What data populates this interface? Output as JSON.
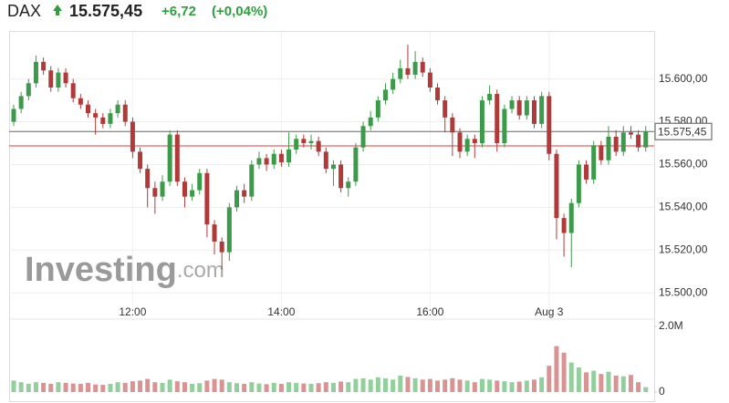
{
  "header": {
    "symbol": "DAX",
    "price": "15.575,45",
    "change": "+6,72",
    "change_pct": "(+0,04%)"
  },
  "watermark": {
    "brand": "Investing",
    "suffix": ".com"
  },
  "chart_data": {
    "type": "candlestick",
    "categories": [
      null,
      null,
      null,
      null,
      null,
      null,
      null,
      null,
      null,
      null,
      null,
      null,
      null,
      null,
      null,
      null,
      "12:00",
      null,
      null,
      null,
      null,
      null,
      null,
      null,
      null,
      null,
      null,
      null,
      null,
      null,
      null,
      null,
      null,
      null,
      null,
      null,
      "14:00",
      null,
      null,
      null,
      null,
      null,
      null,
      null,
      null,
      null,
      null,
      null,
      null,
      null,
      null,
      null,
      null,
      null,
      null,
      null,
      "16:00",
      null,
      null,
      null,
      null,
      null,
      null,
      null,
      null,
      null,
      null,
      null,
      null,
      null,
      null,
      null,
      "Aug 3",
      null,
      null,
      null,
      null,
      null,
      null,
      null,
      null,
      null,
      null,
      null,
      null,
      null
    ],
    "open": [
      15580,
      15586,
      15592,
      15598,
      15608,
      15604,
      15596,
      15603,
      15598,
      15591,
      15588,
      15584,
      15582,
      15579,
      15584,
      15588,
      15580,
      15566,
      15558,
      15549,
      15545,
      15552,
      15574,
      15552,
      15545,
      15548,
      15556,
      15532,
      15524,
      15519,
      15540,
      15548,
      15545,
      15560,
      15563,
      15560,
      15565,
      15561,
      15567,
      15572,
      15570,
      15571,
      15566,
      15558,
      15560,
      15549,
      15552,
      15568,
      15578,
      15582,
      15590,
      15595,
      15600,
      15605,
      15602,
      15608,
      15603,
      15596,
      15590,
      15582,
      15575,
      15566,
      15572,
      15570,
      15590,
      15593,
      15570,
      15586,
      15590,
      15583,
      15590,
      15579,
      15592,
      15565,
      15535,
      15528,
      15542,
      15560,
      15553,
      15569,
      15562,
      15573,
      15566,
      15575,
      15574,
      15568
    ],
    "high": [
      15588,
      15594,
      15600,
      15611,
      15610,
      15606,
      15605,
      15605,
      15600,
      15593,
      15590,
      15586,
      15584,
      15586,
      15590,
      15590,
      15582,
      15568,
      15560,
      15552,
      15555,
      15576,
      15576,
      15554,
      15551,
      15558,
      15558,
      15534,
      15526,
      15542,
      15550,
      15551,
      15562,
      15566,
      15565,
      15567,
      15567,
      15575,
      15574,
      15574,
      15574,
      15573,
      15568,
      15562,
      15562,
      15554,
      15570,
      15580,
      15585,
      15592,
      15598,
      15603,
      15609,
      15616,
      15613,
      15610,
      15605,
      15598,
      15592,
      15584,
      15577,
      15574,
      15574,
      15592,
      15597,
      15595,
      15588,
      15592,
      15592,
      15592,
      15592,
      15594,
      15594,
      15567,
      15537,
      15544,
      15562,
      15562,
      15571,
      15571,
      15578,
      15576,
      15578,
      15578,
      15576,
      15578
    ],
    "low": [
      15578,
      15584,
      15590,
      15596,
      15602,
      15594,
      15594,
      15596,
      15589,
      15586,
      15582,
      15574,
      15577,
      15577,
      15582,
      15578,
      15563,
      15556,
      15540,
      15537,
      15543,
      15550,
      15550,
      15540,
      15543,
      15546,
      15526,
      15518,
      15511,
      15515,
      15538,
      15542,
      15543,
      15558,
      15557,
      15558,
      15559,
      15559,
      15565,
      15568,
      15567,
      15564,
      15556,
      15550,
      15547,
      15545,
      15550,
      15566,
      15576,
      15580,
      15588,
      15593,
      15598,
      15600,
      15600,
      15601,
      15594,
      15588,
      15575,
      15564,
      15563,
      15564,
      15563,
      15568,
      15588,
      15566,
      15568,
      15584,
      15581,
      15581,
      15577,
      15577,
      15562,
      15525,
      15517,
      15512,
      15540,
      15551,
      15551,
      15560,
      15560,
      15564,
      15564,
      15572,
      15566,
      15566
    ],
    "close": [
      15586,
      15592,
      15598,
      15608,
      15604,
      15596,
      15603,
      15598,
      15591,
      15588,
      15584,
      15582,
      15579,
      15584,
      15588,
      15580,
      15566,
      15558,
      15549,
      15545,
      15552,
      15574,
      15552,
      15545,
      15548,
      15556,
      15532,
      15524,
      15519,
      15540,
      15548,
      15545,
      15560,
      15563,
      15560,
      15565,
      15561,
      15567,
      15572,
      15570,
      15571,
      15566,
      15558,
      15560,
      15549,
      15552,
      15568,
      15578,
      15582,
      15590,
      15595,
      15600,
      15605,
      15602,
      15608,
      15603,
      15596,
      15590,
      15582,
      15575,
      15566,
      15572,
      15570,
      15590,
      15593,
      15570,
      15586,
      15590,
      15583,
      15590,
      15579,
      15592,
      15565,
      15535,
      15528,
      15542,
      15560,
      15553,
      15569,
      15562,
      15573,
      15566,
      15575,
      15574,
      15568,
      15575.45
    ],
    "volume": [
      350000,
      300000,
      250000,
      300000,
      280000,
      250000,
      300000,
      280000,
      260000,
      250000,
      280000,
      230000,
      220000,
      250000,
      300000,
      280000,
      330000,
      350000,
      400000,
      300000,
      280000,
      380000,
      330000,
      300000,
      250000,
      270000,
      350000,
      400000,
      380000,
      300000,
      270000,
      250000,
      300000,
      260000,
      240000,
      280000,
      250000,
      300000,
      280000,
      260000,
      250000,
      270000,
      300000,
      280000,
      320000,
      300000,
      400000,
      420000,
      380000,
      450000,
      420000,
      380000,
      500000,
      460000,
      420000,
      380000,
      400000,
      350000,
      380000,
      420000,
      380000,
      350000,
      300000,
      400000,
      380000,
      350000,
      330000,
      300000,
      320000,
      350000,
      380000,
      450000,
      800000,
      1400000,
      1200000,
      900000,
      750000,
      600000,
      650000,
      550000,
      620000,
      500000,
      480000,
      520000,
      300000,
      150000
    ],
    "up_color": "#3d9a4a",
    "down_color": "#b03a3a",
    "volume_up_color": "#93cf9c",
    "volume_down_color": "#d99393",
    "ylim": [
      15492,
      15622
    ],
    "yticks": [
      {
        "value": 15500,
        "label": "15.500,00"
      },
      {
        "value": 15520,
        "label": "15.520,00"
      },
      {
        "value": 15540,
        "label": "15.540,00"
      },
      {
        "value": 15560,
        "label": "15.560,00"
      },
      {
        "value": 15580,
        "label": "15.580,00"
      },
      {
        "value": 15600,
        "label": "15.600,00"
      }
    ],
    "current_price": {
      "value": 15575.45,
      "label": "15.575,45"
    },
    "previous_close": 15568.73,
    "volume_ylim": [
      0,
      2000000
    ],
    "volume_yticks": [
      0,
      {
        "value": 2000000,
        "label": "2.0M"
      }
    ],
    "grid": true
  }
}
